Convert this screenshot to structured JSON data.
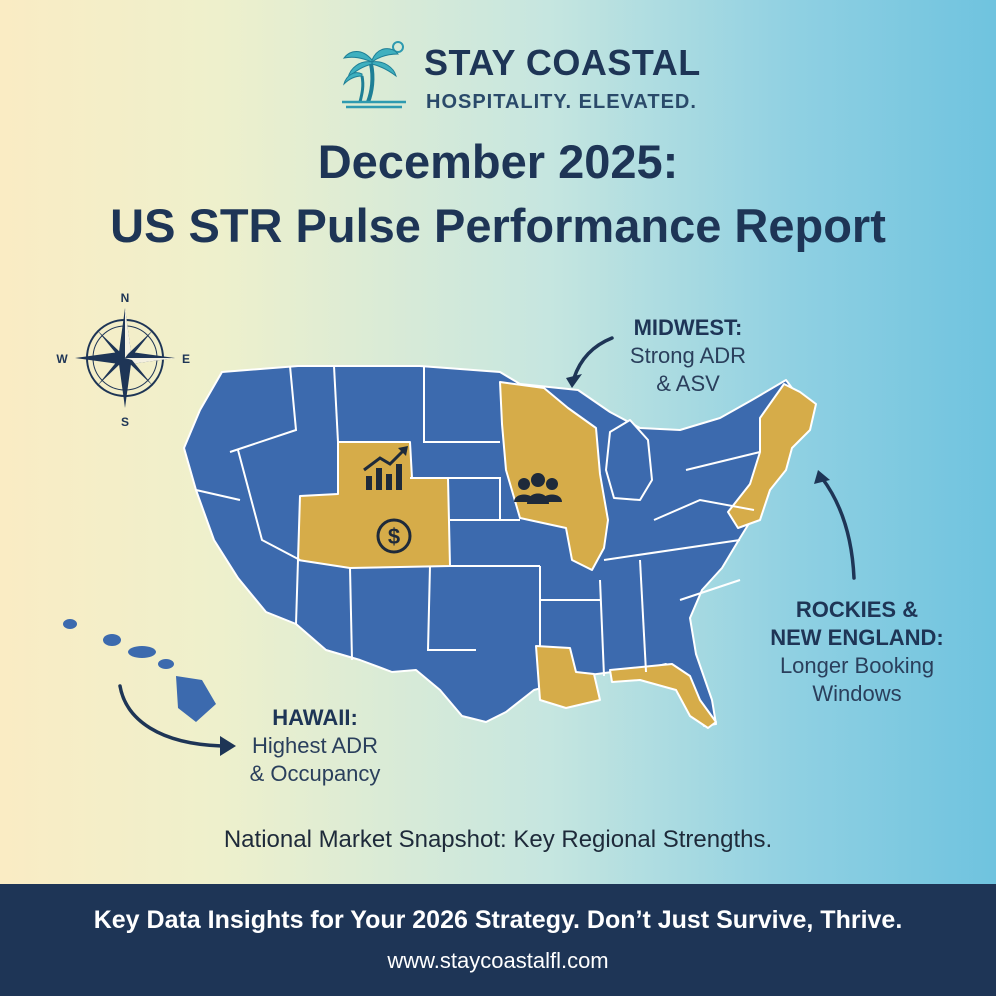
{
  "brand": {
    "name": "STAY COASTAL",
    "tagline": "HOSPITALITY. ELEVATED.",
    "logo_icon": "palm-tree-sun-icon"
  },
  "title": {
    "line1": "December 2025:",
    "line2": "US STR Pulse Performance Report"
  },
  "compass": {
    "icon": "compass-rose-icon",
    "north": "N",
    "south": "S",
    "east": "E",
    "west": "W"
  },
  "map": {
    "base_color": "#3c6aae",
    "highlight_color": "#d6ac49",
    "border_color": "#ffffff",
    "highlighted_regions": [
      "Rockies",
      "Midwest",
      "New England",
      "Gulf Coast"
    ],
    "icons": [
      "growth-chart-icon",
      "dollar-coin-icon",
      "people-group-icon"
    ]
  },
  "callouts": {
    "midwest": {
      "head": "MIDWEST:",
      "line1": "Strong ADR",
      "line2": "& ASV"
    },
    "rockies": {
      "head1": "ROCKIES &",
      "head2": "NEW ENGLAND:",
      "line1": "Longer Booking",
      "line2": "Windows"
    },
    "hawaii": {
      "head": "HAWAII:",
      "line1": "Highest ADR",
      "line2": "& Occupancy"
    }
  },
  "caption": "National Market Snapshot: Key Regional Strengths.",
  "footer": {
    "tagline": "Key Data Insights for Your 2026 Strategy. Don’t Just Survive, Thrive.",
    "url": "www.staycoastalfl.com",
    "background": "#1e3556"
  }
}
